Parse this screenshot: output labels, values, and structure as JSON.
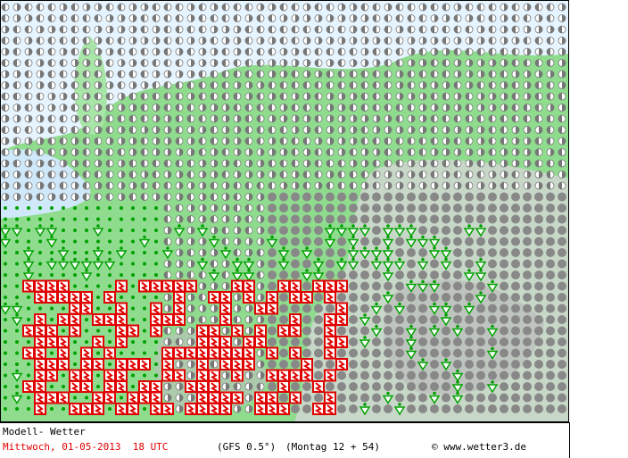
{
  "footer": {
    "model_label": "Modell- Wetter",
    "valid_time": "Mittwoch, 01-05-2013  18 UTC",
    "model": "(GFS 0.5°)",
    "run": "(Montag 12 + 54)",
    "copyright": "© www.wetter3.de"
  }
}
